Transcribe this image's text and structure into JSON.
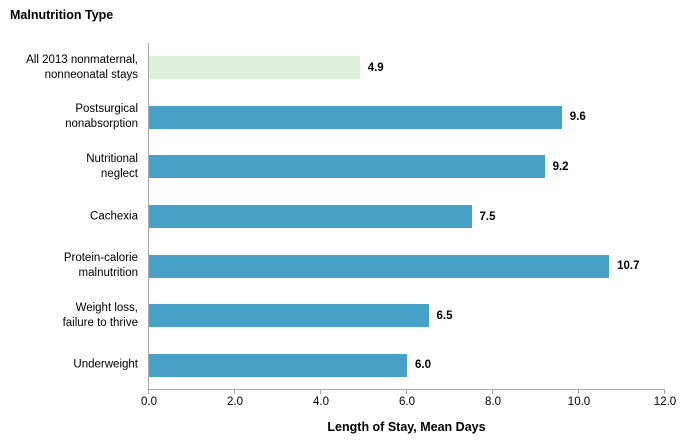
{
  "page": {
    "background": "#ffffff"
  },
  "chart_data": {
    "type": "bar",
    "orientation": "horizontal",
    "title": "Malnutrition Type",
    "xlabel": "Length of Stay, Mean Days",
    "categories": [
      "All 2013 nonmaternal,\nnonneonatal stays",
      "Postsurgical\nnonabsorption",
      "Nutritional\nneglect",
      "Cachexia",
      "Protein-calorie\nmalnutrition",
      "Weight loss,\nfailure to thrive",
      "Underweight"
    ],
    "values": [
      4.9,
      9.6,
      9.2,
      7.5,
      10.7,
      6.5,
      6.0
    ],
    "value_labels": [
      "4.9",
      "9.6",
      "9.2",
      "7.5",
      "10.7",
      "6.5",
      "6.0"
    ],
    "bar_colors": [
      "#dff1dc",
      "#47a1c7",
      "#47a1c7",
      "#47a1c7",
      "#47a1c7",
      "#47a1c7",
      "#47a1c7"
    ],
    "highlight_index": 0,
    "xlim": [
      0,
      12
    ],
    "xticks": [
      0,
      2,
      4,
      6,
      8,
      10,
      12
    ],
    "xtick_labels": [
      "0.0",
      "2.0",
      "4.0",
      "6.0",
      "8.0",
      "10.0",
      "12.0"
    ],
    "grid": false,
    "legend": "none",
    "colors": {
      "bar_default": "#47a1c7",
      "bar_highlight": "#dff1dc",
      "axis": "#a9a9a9",
      "text": "#000000"
    }
  }
}
